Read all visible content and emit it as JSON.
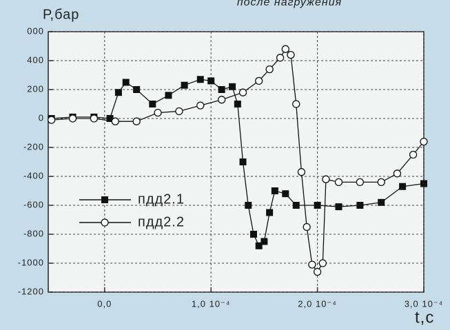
{
  "chart_data": {
    "type": "line",
    "title": "после нагружения",
    "y_label": "Р,бар",
    "x_label": "t,c",
    "xlim": [
      -5.3e-05,
      0.0003
    ],
    "ylim": [
      -1200,
      600
    ],
    "xticks": [
      {
        "value": 0,
        "label": "0,0"
      },
      {
        "value": 0.0001,
        "label": "1,0 10⁻⁴"
      },
      {
        "value": 0.0002,
        "label": "2,0 10⁻⁴"
      },
      {
        "value": 0.0003,
        "label": "3,0 10⁻⁴"
      }
    ],
    "yticks": [
      {
        "value": 600,
        "label": "000"
      },
      400,
      200,
      0,
      -200,
      -400,
      -600,
      -800,
      -1000,
      -1200
    ],
    "grid": true,
    "legend": "lower left",
    "series": [
      {
        "name": "пдд2.1",
        "color": "#111111",
        "marker": "square",
        "x": [
          -5e-05,
          -3e-05,
          -1e-05,
          5e-06,
          1.3e-05,
          2e-05,
          3e-05,
          4.5e-05,
          6e-05,
          7.5e-05,
          9e-05,
          0.0001,
          0.00011,
          0.00012,
          0.000125,
          0.00013,
          0.000135,
          0.00014,
          0.000145,
          0.00015,
          0.000155,
          0.00016,
          0.00017,
          0.00018,
          0.0002,
          0.00022,
          0.00024,
          0.00026,
          0.00028,
          0.0003
        ],
        "values": [
          0,
          10,
          10,
          0,
          180,
          250,
          200,
          100,
          160,
          230,
          270,
          260,
          200,
          220,
          100,
          -300,
          -600,
          -800,
          -880,
          -850,
          -650,
          -500,
          -520,
          -600,
          -600,
          -610,
          -600,
          -580,
          -470,
          -450
        ]
      },
      {
        "name": "пдд2.2",
        "color": "#111111",
        "marker": "circle",
        "x": [
          -5e-05,
          -3e-05,
          -1e-05,
          1e-05,
          3e-05,
          5e-05,
          7e-05,
          9e-05,
          0.00011,
          0.00013,
          0.000145,
          0.000155,
          0.000165,
          0.00017,
          0.000175,
          0.00018,
          0.000185,
          0.00019,
          0.000195,
          0.0002,
          0.000205,
          0.000208,
          0.00022,
          0.00024,
          0.00026,
          0.000275,
          0.00029,
          0.0003
        ],
        "values": [
          -10,
          0,
          0,
          -20,
          -20,
          40,
          50,
          90,
          130,
          180,
          260,
          340,
          420,
          480,
          440,
          100,
          -370,
          -750,
          -1010,
          -1060,
          -1000,
          -420,
          -440,
          -440,
          -440,
          -380,
          -250,
          -160
        ]
      }
    ]
  }
}
